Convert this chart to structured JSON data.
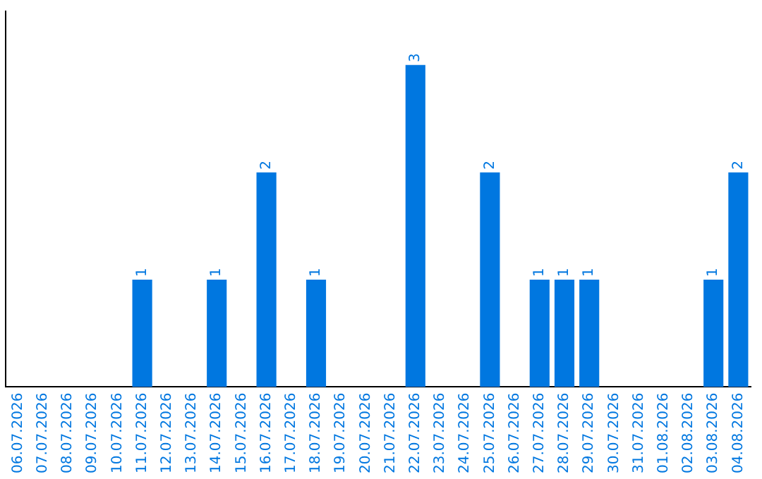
{
  "chart_data": {
    "type": "bar",
    "categories": [
      "06.07.2026",
      "07.07.2026",
      "08.07.2026",
      "09.07.2026",
      "10.07.2026",
      "11.07.2026",
      "12.07.2026",
      "13.07.2026",
      "14.07.2026",
      "15.07.2026",
      "16.07.2026",
      "17.07.2026",
      "18.07.2026",
      "19.07.2026",
      "20.07.2026",
      "21.07.2026",
      "22.07.2026",
      "23.07.2026",
      "24.07.2026",
      "25.07.2026",
      "26.07.2026",
      "27.07.2026",
      "28.07.2026",
      "29.07.2026",
      "30.07.2026",
      "31.07.2026",
      "01.08.2026",
      "02.08.2026",
      "03.08.2026",
      "04.08.2026"
    ],
    "values": [
      0,
      0,
      0,
      0,
      0,
      1,
      0,
      0,
      1,
      0,
      2,
      0,
      1,
      0,
      0,
      0,
      3,
      0,
      0,
      2,
      0,
      1,
      1,
      1,
      0,
      0,
      0,
      0,
      1,
      2
    ],
    "value_labels": [
      null,
      null,
      null,
      null,
      null,
      "1",
      null,
      null,
      "1",
      null,
      "2",
      null,
      "1",
      null,
      null,
      null,
      "3",
      null,
      null,
      "2",
      null,
      "1",
      "1",
      "1",
      null,
      null,
      null,
      null,
      "1",
      "2"
    ],
    "color": "#0077e0",
    "tick_labels": "x",
    "grid": false,
    "legend": false
  }
}
